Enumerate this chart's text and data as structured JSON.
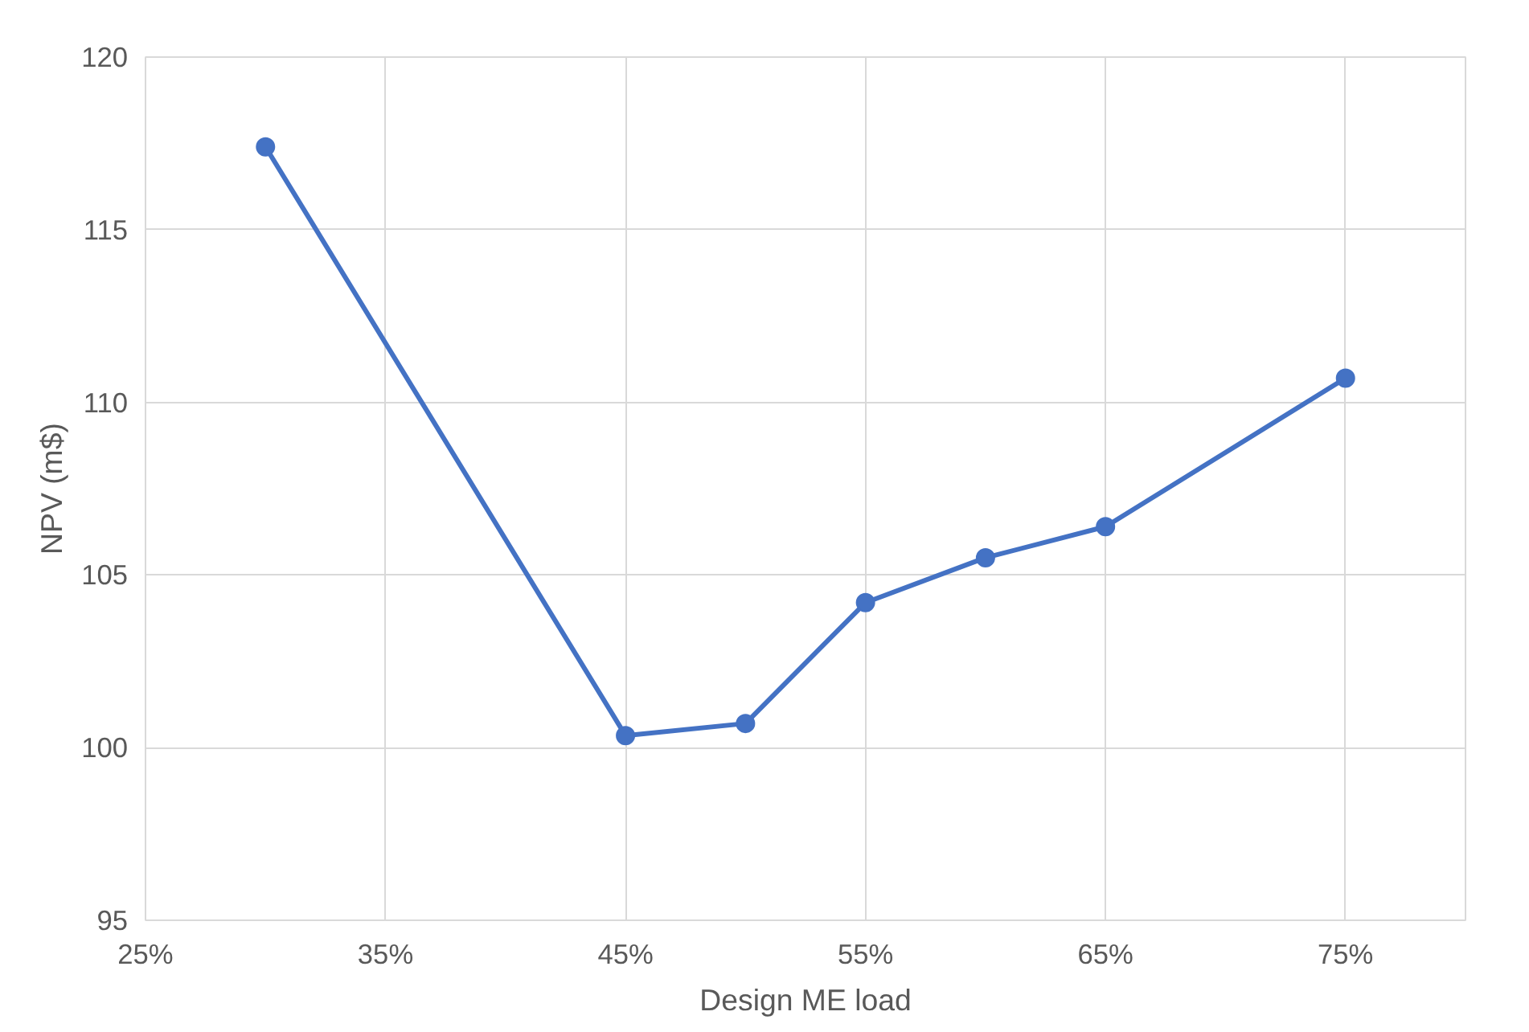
{
  "chart_data": {
    "type": "line",
    "xlabel": "Design ME load",
    "ylabel": "NPV (m$)",
    "x": [
      30,
      45,
      50,
      55,
      60,
      65,
      75
    ],
    "series": [
      {
        "color": "#4472c4",
        "values": [
          117.4,
          100.35,
          100.7,
          104.2,
          105.5,
          106.4,
          110.7
        ]
      }
    ],
    "xlim": [
      25,
      80
    ],
    "xticks": [
      {
        "value": 25,
        "label": "25%"
      },
      {
        "value": 35,
        "label": "35%"
      },
      {
        "value": 45,
        "label": "45%"
      },
      {
        "value": 55,
        "label": "55%"
      },
      {
        "value": 65,
        "label": "65%"
      },
      {
        "value": 75,
        "label": "75%"
      }
    ],
    "ylim": [
      95,
      120
    ],
    "yticks": [
      95,
      100,
      105,
      110,
      115,
      120
    ],
    "grid": true,
    "marker": "circle",
    "line_style": "solid"
  }
}
